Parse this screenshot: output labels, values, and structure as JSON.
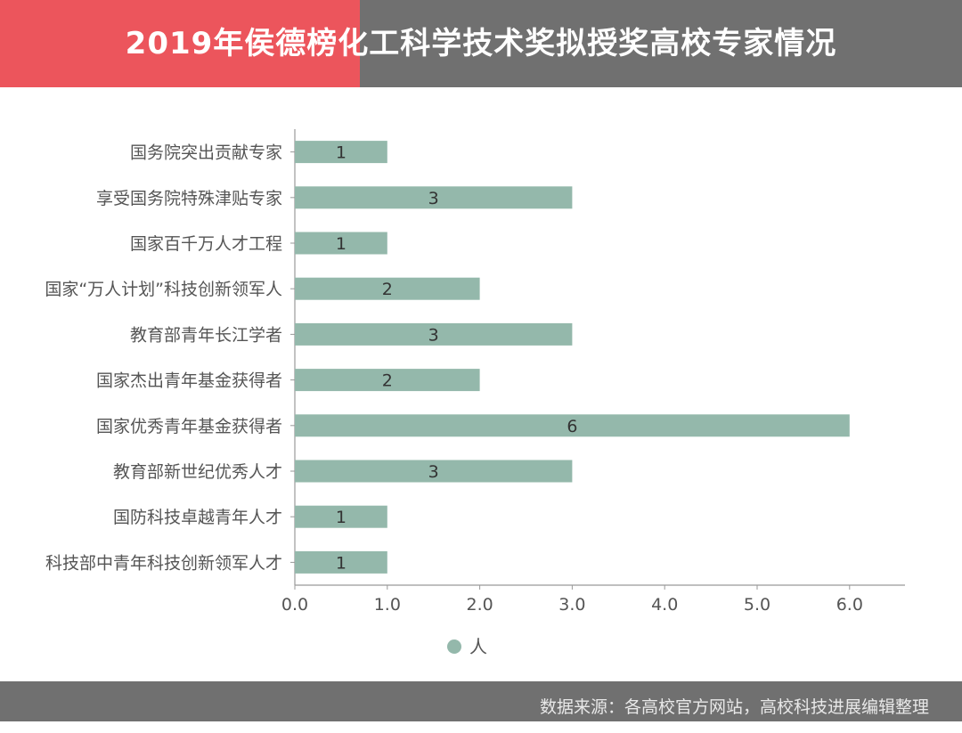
{
  "header": {
    "title": "2019年侯德榜化工科学技术奖拟授奖高校专家情况"
  },
  "footer": {
    "source": "数据来源：各高校官方网站，高校科技进展编辑整理"
  },
  "colors": {
    "accent": "#ec555c",
    "band": "#707070",
    "bar": "#94b8ab",
    "axis": "#999999"
  },
  "chart_data": {
    "type": "bar",
    "orientation": "horizontal",
    "title": "2019年侯德榜化工科学技术奖拟授奖高校专家情况",
    "categories": [
      "国务院突出贡献专家",
      "享受国务院特殊津贴专家",
      "国家百千万人才工程",
      "国家“万人计划”科技创新领军人",
      "教育部青年长江学者",
      "国家杰出青年基金获得者",
      "国家优秀青年基金获得者",
      "教育部新世纪优秀人才",
      "国防科技卓越青年人才",
      "科技部中青年科技创新领军人才"
    ],
    "series": [
      {
        "name": "人",
        "values": [
          1,
          3,
          1,
          2,
          3,
          2,
          6,
          3,
          1,
          1
        ]
      }
    ],
    "data_labels": [
      "1",
      "3",
      "1",
      "2",
      "3",
      "2",
      "6",
      "3",
      "1",
      "1"
    ],
    "xticks": [
      "0.0",
      "1.0",
      "2.0",
      "3.0",
      "4.0",
      "5.0",
      "6.0"
    ],
    "xlim": [
      0,
      6.6
    ],
    "grid": false,
    "legend": "bottom"
  }
}
